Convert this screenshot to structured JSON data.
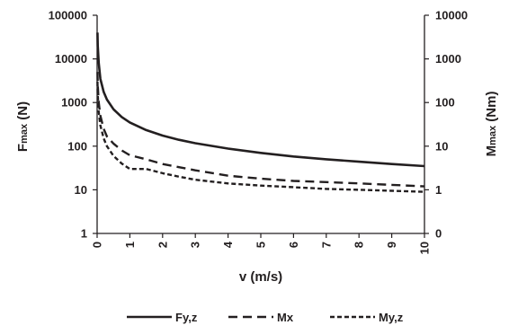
{
  "chart_data": {
    "type": "line",
    "title": "",
    "xlabel": "v (m/s)",
    "ylabel_left": {
      "main": "F",
      "sub": "max",
      "unit": " (N)"
    },
    "ylabel_right": {
      "main": "M",
      "sub": "max",
      "unit": " (Nm)"
    },
    "x_ticks": [
      "0",
      "1",
      "2",
      "3",
      "4",
      "5",
      "6",
      "7",
      "8",
      "9",
      "10"
    ],
    "y_left_ticks": [
      "1",
      "10",
      "100",
      "1000",
      "10000",
      "100000"
    ],
    "y_right_ticks": [
      "0",
      "1",
      "10",
      "100",
      "1000",
      "10000"
    ],
    "xlim": [
      0,
      10
    ],
    "ylim_left": [
      1,
      100000
    ],
    "ylim_right": [
      0.1,
      10000
    ],
    "y_scale": "log",
    "grid": false,
    "legend_position": "bottom",
    "series": [
      {
        "name": "Fy,z",
        "axis": "left",
        "style": "solid",
        "x": [
          0.01,
          0.02,
          0.05,
          0.1,
          0.2,
          0.3,
          0.5,
          0.75,
          1,
          1.5,
          2,
          2.5,
          3,
          4,
          5,
          6,
          7,
          8,
          9,
          10
        ],
        "y": [
          40000,
          20000,
          8000,
          3500,
          1750,
          1170,
          700,
          467,
          350,
          233,
          175,
          140,
          117,
          88,
          70,
          58,
          50,
          44,
          39,
          35
        ]
      },
      {
        "name": "Mx",
        "axis": "right",
        "style": "dashed",
        "x": [
          0.01,
          0.02,
          0.05,
          0.1,
          0.2,
          0.3,
          0.5,
          0.75,
          1,
          1.5,
          2,
          2.5,
          3,
          4,
          5,
          6,
          7,
          8,
          9,
          10
        ],
        "y": [
          500,
          250,
          100,
          50,
          25,
          16.7,
          11.5,
          8,
          6.2,
          5,
          3.9,
          3.3,
          2.8,
          2.1,
          1.8,
          1.6,
          1.5,
          1.4,
          1.3,
          1.2
        ]
      },
      {
        "name": "My,z",
        "axis": "right",
        "style": "dotted-dash",
        "x": [
          0.01,
          0.02,
          0.05,
          0.1,
          0.2,
          0.3,
          0.5,
          0.75,
          1,
          1.5,
          2,
          2.5,
          3,
          4,
          5,
          6,
          7,
          8,
          9,
          10
        ],
        "y": [
          300,
          150,
          60,
          30,
          15,
          10,
          6,
          4,
          3,
          3,
          2.4,
          2,
          1.7,
          1.4,
          1.25,
          1.15,
          1.05,
          1,
          0.95,
          0.9
        ]
      }
    ]
  }
}
